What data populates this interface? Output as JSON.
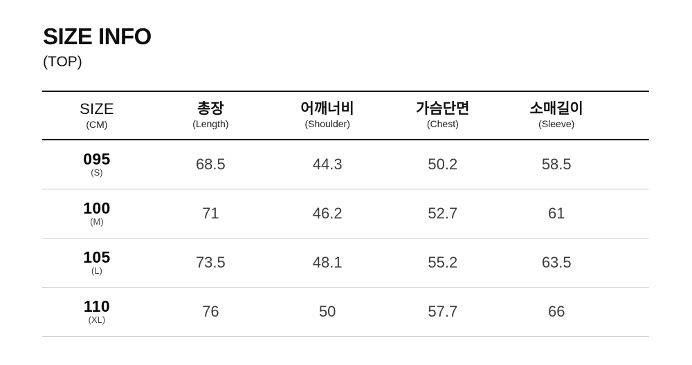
{
  "page": {
    "title": "SIZE INFO",
    "subtitle": "(TOP)"
  },
  "colors": {
    "background": "#ffffff",
    "heavy_rule": "#151515",
    "light_rule": "#c9c9c9",
    "title_text": "#0d0d0d",
    "value_text": "#3d3d3d"
  },
  "chart_data": {
    "type": "table",
    "title": "SIZE INFO",
    "subtitle": "(TOP)",
    "unit": "CM",
    "columns": [
      {
        "main": "SIZE",
        "sub": "(CM)"
      },
      {
        "main": "총장",
        "sub": "(Length)"
      },
      {
        "main": "어깨너비",
        "sub": "(Shoulder)"
      },
      {
        "main": "가슴단면",
        "sub": "(Chest)"
      },
      {
        "main": "소매길이",
        "sub": "(Sleeve)"
      }
    ],
    "rows": [
      {
        "size": "095",
        "grade": "(S)",
        "values": [
          "68.5",
          "44.3",
          "50.2",
          "58.5"
        ]
      },
      {
        "size": "100",
        "grade": "(M)",
        "values": [
          "71",
          "46.2",
          "52.7",
          "61"
        ]
      },
      {
        "size": "105",
        "grade": "(L)",
        "values": [
          "73.5",
          "48.1",
          "55.2",
          "63.5"
        ]
      },
      {
        "size": "110",
        "grade": "(XL)",
        "values": [
          "76",
          "50",
          "57.7",
          "66"
        ]
      }
    ]
  }
}
